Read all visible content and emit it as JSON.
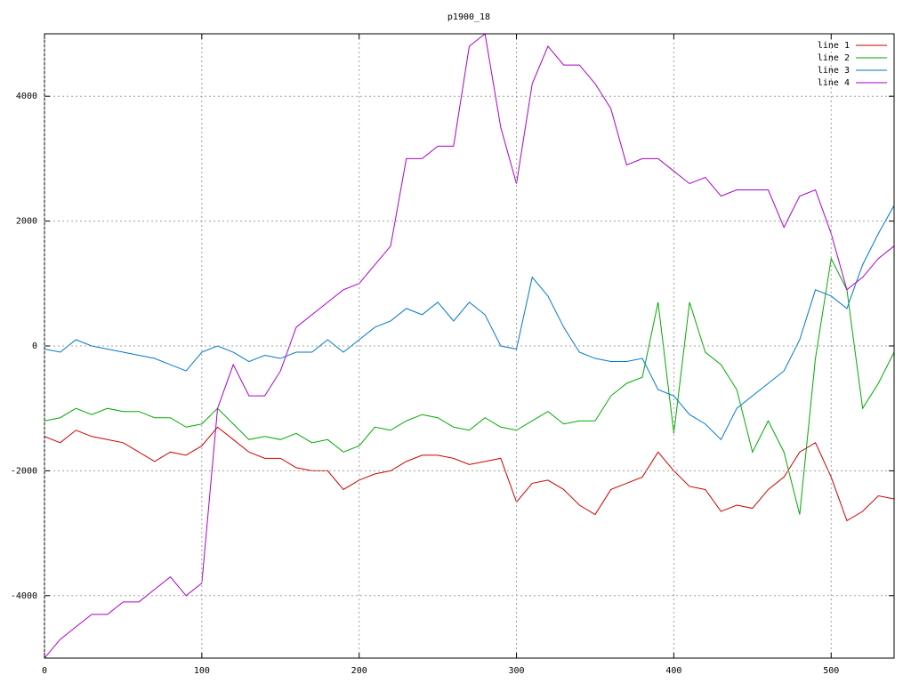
{
  "chart_data": {
    "type": "line",
    "title": "p1900_18",
    "x": [
      0,
      10,
      20,
      30,
      40,
      50,
      60,
      70,
      80,
      90,
      100,
      110,
      120,
      130,
      140,
      150,
      160,
      170,
      180,
      190,
      200,
      210,
      220,
      230,
      240,
      250,
      260,
      270,
      280,
      290,
      300,
      310,
      320,
      330,
      340,
      350,
      360,
      370,
      380,
      390,
      400,
      410,
      420,
      430,
      440,
      450,
      460,
      470,
      480,
      490,
      500,
      510,
      520,
      530,
      540
    ],
    "series": [
      {
        "name": "line 1",
        "color": "#cc0000",
        "values": [
          -1450,
          -1550,
          -1350,
          -1450,
          -1500,
          -1550,
          -1700,
          -1850,
          -1700,
          -1750,
          -1600,
          -1300,
          -1500,
          -1700,
          -1800,
          -1800,
          -1950,
          -2000,
          -2000,
          -2300,
          -2150,
          -2050,
          -2000,
          -1850,
          -1750,
          -1750,
          -1800,
          -1900,
          -1850,
          -1800,
          -2500,
          -2200,
          -2150,
          -2300,
          -2550,
          -2700,
          -2300,
          -2200,
          -2100,
          -1700,
          -2000,
          -2250,
          -2300,
          -2650,
          -2550,
          -2600,
          -2300,
          -2100,
          -1700,
          -1550,
          -2100,
          -2800,
          -2650,
          -2400,
          -2450
        ]
      },
      {
        "name": "line 2",
        "color": "#00aa00",
        "values": [
          -1200,
          -1150,
          -1000,
          -1100,
          -1000,
          -1050,
          -1050,
          -1150,
          -1150,
          -1300,
          -1250,
          -1000,
          -1250,
          -1500,
          -1450,
          -1500,
          -1400,
          -1550,
          -1500,
          -1700,
          -1600,
          -1300,
          -1350,
          -1200,
          -1100,
          -1150,
          -1300,
          -1350,
          -1150,
          -1300,
          -1350,
          -1200,
          -1050,
          -1250,
          -1200,
          -1200,
          -800,
          -600,
          -500,
          700,
          -1400,
          700,
          -100,
          -300,
          -700,
          -1700,
          -1200,
          -1700,
          -2700,
          -200,
          1400,
          900,
          -1000,
          -600,
          -100
        ]
      },
      {
        "name": "line 3",
        "color": "#0077cc",
        "values": [
          -50,
          -100,
          100,
          0,
          -50,
          -100,
          -150,
          -200,
          -300,
          -400,
          -100,
          0,
          -100,
          -250,
          -150,
          -200,
          -100,
          -100,
          100,
          -100,
          100,
          300,
          400,
          600,
          500,
          700,
          400,
          700,
          500,
          0,
          -50,
          1100,
          800,
          300,
          -100,
          -200,
          -250,
          -250,
          -200,
          -700,
          -800,
          -1100,
          -1250,
          -1500,
          -1000,
          -800,
          -600,
          -400,
          100,
          900,
          800,
          600,
          1300,
          1800,
          2250
        ]
      },
      {
        "name": "line 4",
        "color": "#aa00cc",
        "values": [
          -5000,
          -4700,
          -4500,
          -4300,
          -4300,
          -4100,
          -4100,
          -3900,
          -3700,
          -4000,
          -3800,
          -1000,
          -300,
          -800,
          -800,
          -400,
          300,
          500,
          700,
          900,
          1000,
          1300,
          1600,
          3000,
          3000,
          3200,
          3200,
          4800,
          5000,
          3500,
          2600,
          4200,
          4800,
          4500,
          4500,
          4200,
          3800,
          2900,
          3000,
          3000,
          2800,
          2600,
          2700,
          2400,
          2500,
          2500,
          2500,
          1900,
          2400,
          2500,
          1800,
          900,
          1100,
          1400,
          1600
        ]
      }
    ],
    "xlim": [
      0,
      540
    ],
    "ylim": [
      -5000,
      5000
    ],
    "xticks": [
      0,
      100,
      200,
      300,
      400,
      500
    ],
    "yticks": [
      -4000,
      -2000,
      0,
      2000,
      4000
    ],
    "grid": true,
    "legend": "top-right"
  }
}
